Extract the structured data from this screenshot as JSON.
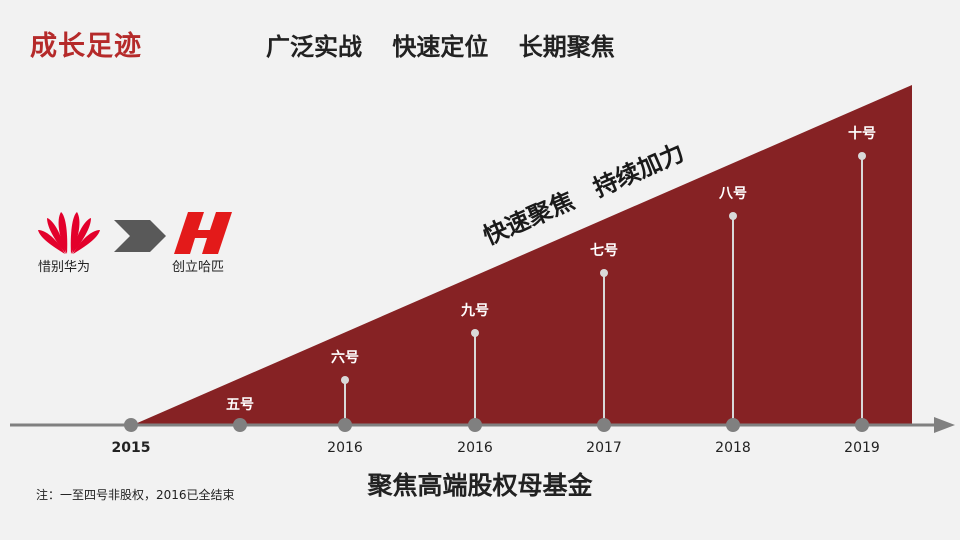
{
  "slide": {
    "title": "成长足迹",
    "subtitle": [
      "广泛实战",
      "快速定位",
      "长期聚焦"
    ],
    "slogan": "快速聚焦　持续加力",
    "fund_label": "聚焦高端股权母基金",
    "footnote": "注：一至四号非股权，2016已全结束"
  },
  "origin": {
    "from_label": "惜别华为",
    "to_label": "创立哈匹",
    "from_logo": "huawei-petal-logo",
    "to_logo": "hapi-h-logo",
    "arrow_icon": "chevron-right-icon"
  },
  "colors": {
    "accent": "#b52a2a",
    "triangle": "#862224",
    "axis": "#808080",
    "stem": "#d9d9d9",
    "huawei": "#e3002b",
    "hapi": "#e31a1a",
    "arrow": "#595959"
  },
  "chart_data": {
    "type": "timeline",
    "axis_labels": [
      {
        "year": "2015",
        "pos": 0
      },
      {
        "year": "2016",
        "pos": 2
      },
      {
        "year": "2016",
        "pos": 3
      },
      {
        "year": "2017",
        "pos": 4
      },
      {
        "year": "2018",
        "pos": 5
      },
      {
        "year": "2019",
        "pos": 6
      }
    ],
    "milestones": [
      {
        "label": "五号",
        "pos": 1,
        "level": 0
      },
      {
        "label": "六号",
        "pos": 2,
        "level": 1
      },
      {
        "label": "九号",
        "pos": 3,
        "level": 2
      },
      {
        "label": "七号",
        "pos": 4,
        "level": 3
      },
      {
        "label": "八号",
        "pos": 5,
        "level": 4
      },
      {
        "label": "十号",
        "pos": 6,
        "level": 5
      }
    ]
  }
}
